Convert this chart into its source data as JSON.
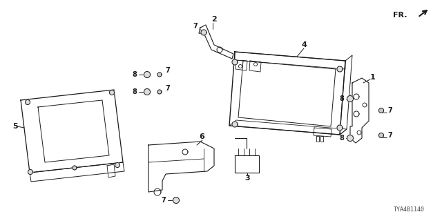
{
  "bg_color": "#ffffff",
  "fig_width": 6.4,
  "fig_height": 3.2,
  "dpi": 100,
  "part_number_text": "TYA4B1140",
  "line_color": "#1a1a1a",
  "gray_color": "#555555",
  "light_gray": "#aaaaaa"
}
